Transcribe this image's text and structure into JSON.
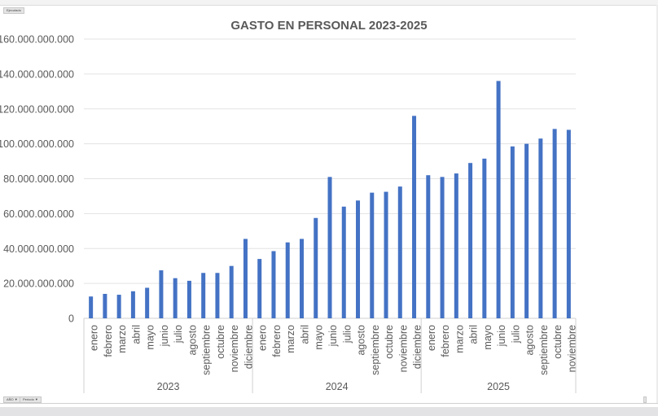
{
  "field_buttons": {
    "value_field": "Ejecutado",
    "year_field": "AÑO ▼",
    "period_field": "Periodo ▼"
  },
  "chart_data": {
    "type": "bar",
    "title": "GASTO EN PERSONAL 2023-2025",
    "xlabel": "",
    "ylabel": "",
    "ylim": [
      0,
      160000000000
    ],
    "yticks": [
      "0",
      "20.000.000.000",
      "40.000.000.000",
      "60.000.000.000",
      "80.000.000.000",
      "100.000.000.000",
      "120.000.000.000",
      "140.000.000.000",
      "160.000.000.000"
    ],
    "grid": true,
    "color": "#4472C4",
    "groups": [
      {
        "year": "2023",
        "categories": [
          "enero",
          "febrero",
          "marzo",
          "abril",
          "mayo",
          "junio",
          "julio",
          "agosto",
          "septiembre",
          "octubre",
          "noviembre",
          "diciembre"
        ],
        "values": [
          12500000000,
          14000000000,
          13500000000,
          15500000000,
          17500000000,
          27500000000,
          23000000000,
          21500000000,
          26000000000,
          26000000000,
          30000000000,
          45500000000
        ]
      },
      {
        "year": "2024",
        "categories": [
          "enero",
          "febrero",
          "marzo",
          "abril",
          "mayo",
          "junio",
          "julio",
          "agosto",
          "septiembre",
          "octubre",
          "noviembre",
          "diciembre"
        ],
        "values": [
          34000000000,
          38500000000,
          43500000000,
          45500000000,
          57500000000,
          81000000000,
          64000000000,
          67500000000,
          72000000000,
          72500000000,
          75500000000,
          116000000000
        ]
      },
      {
        "year": "2025",
        "categories": [
          "enero",
          "febrero",
          "marzo",
          "abril",
          "mayo",
          "junio",
          "julio",
          "agosto",
          "septiembre",
          "octubre",
          "noviembre"
        ],
        "values": [
          82000000000,
          81000000000,
          83000000000,
          89000000000,
          91500000000,
          136000000000,
          98500000000,
          100000000000,
          103000000000,
          108500000000,
          108000000000
        ]
      }
    ]
  }
}
